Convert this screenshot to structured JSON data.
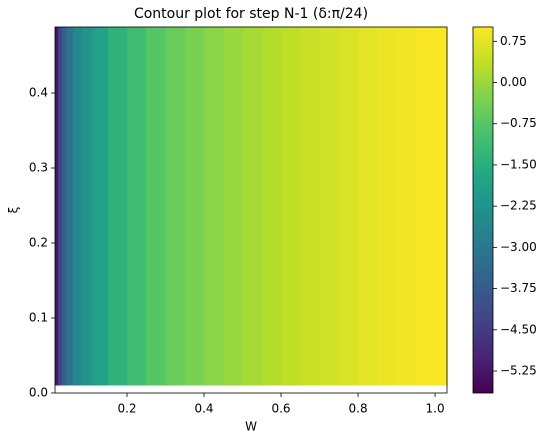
{
  "chart_data": {
    "type": "contour",
    "title": "Contour plot for step N-1 (δ:π/24)",
    "x_label": "W",
    "y_label": "ξ",
    "colormap": "viridis",
    "x": [
      0.016,
      0.025,
      0.035,
      0.05,
      0.07,
      0.095,
      0.125,
      0.175,
      0.225,
      0.275,
      0.325,
      0.375,
      0.425,
      0.475,
      0.525,
      0.575,
      0.625,
      0.675,
      0.725,
      0.775,
      0.825,
      0.875,
      0.925,
      0.975
    ],
    "values": [
      -5.3,
      -4.4,
      -3.7,
      -3.1,
      -2.6,
      -2.2,
      -1.85,
      -1.39,
      -1.04,
      -0.77,
      -0.54,
      -0.34,
      -0.17,
      -0.02,
      0.12,
      0.24,
      0.36,
      0.46,
      0.56,
      0.65,
      0.74,
      0.82,
      0.89,
      0.97
    ],
    "y_extent": [
      0.01,
      0.488
    ],
    "xlim": [
      0.013,
      1.031
    ],
    "xticks": [
      0.2,
      0.4,
      0.6,
      0.8,
      {
        "value": 1.0,
        "label": "1.0"
      }
    ],
    "ylim": [
      0,
      0.488
    ],
    "yticks": [
      {
        "value": 0,
        "label": "0.0"
      },
      0.1,
      0.2,
      0.3,
      0.4
    ],
    "clim": [
      -5.65,
      1.01
    ],
    "cticks": [
      0.75,
      {
        "value": 0,
        "label": "0.00"
      },
      {
        "value": -0.75,
        "label": "−0.75"
      },
      {
        "value": -1.5,
        "label": "−1.50"
      },
      {
        "value": -2.25,
        "label": "−2.25"
      },
      {
        "value": -3,
        "label": "−3.00"
      },
      {
        "value": -3.75,
        "label": "−3.75"
      },
      {
        "value": -4.5,
        "label": "−4.50"
      },
      {
        "value": -5.25,
        "label": "−5.25"
      }
    ]
  }
}
